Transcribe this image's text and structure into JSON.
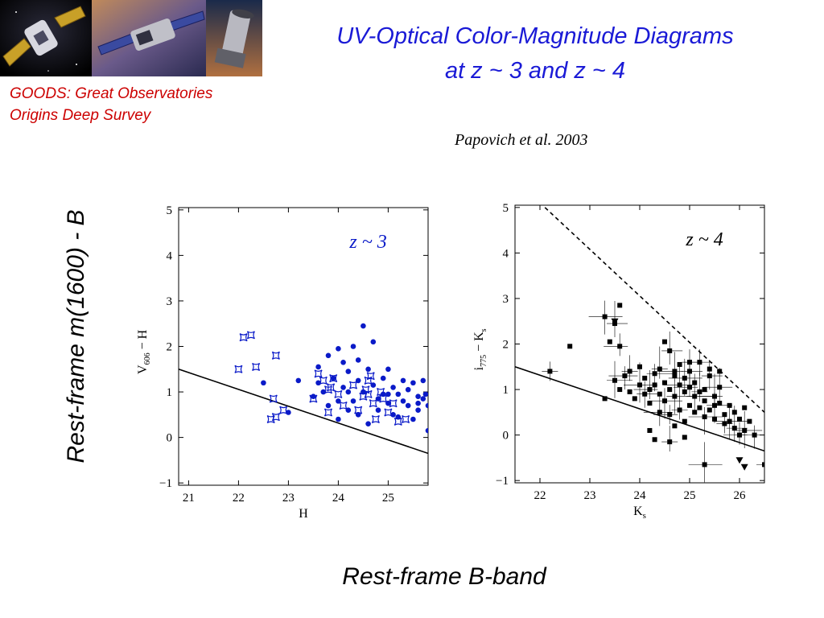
{
  "slide": {
    "title_line1": "UV-Optical Color-Magnitude Diagrams",
    "title_line2": "at z ~ 3 and z ~ 4",
    "goods_line1": "GOODS: Great Observatories",
    "goods_line2": "Origins Deep Survey",
    "citation": "Papovich et al. 2003",
    "ylabel": "Rest-frame m(1600) - B",
    "xlabel": "Rest-frame B-band",
    "colors": {
      "title": "#1a1ad6",
      "caption": "#cc0000",
      "z3_points": "#0a1ac8",
      "z4_points": "#000000"
    },
    "banner_icons": [
      "chandra-satellite-icon",
      "xmm-satellite-icon",
      "spitzer-telescope-icon"
    ]
  },
  "chart_data": [
    {
      "type": "scatter",
      "xlabel": "H",
      "ylabel_base": "V",
      "ylabel_sub": "606",
      "ylabel_tail": " − H",
      "annotation": "z ~ 3",
      "xlim": [
        20.8,
        25.8
      ],
      "ylim": [
        -1.05,
        5.05
      ],
      "xticks": [
        21,
        22,
        23,
        24,
        25
      ],
      "yticks": [
        -1,
        0,
        1,
        2,
        3,
        4,
        5
      ],
      "line": [
        [
          20.8,
          1.5
        ],
        [
          25.8,
          -0.35
        ]
      ],
      "series": [
        {
          "marker": "circle",
          "points": [
            [
              22.5,
              1.2
            ],
            [
              23.0,
              0.55
            ],
            [
              23.2,
              1.25
            ],
            [
              23.5,
              0.9
            ],
            [
              23.6,
              1.55
            ],
            [
              23.7,
              1.0
            ],
            [
              23.8,
              1.8
            ],
            [
              23.8,
              0.7
            ],
            [
              23.9,
              1.3
            ],
            [
              24.0,
              1.95
            ],
            [
              24.0,
              0.8
            ],
            [
              24.1,
              1.1
            ],
            [
              24.1,
              1.65
            ],
            [
              24.2,
              0.6
            ],
            [
              24.2,
              1.45
            ],
            [
              24.3,
              2.0
            ],
            [
              24.3,
              0.8
            ],
            [
              24.4,
              1.25
            ],
            [
              24.4,
              0.5
            ],
            [
              24.4,
              1.7
            ],
            [
              24.5,
              2.45
            ],
            [
              24.5,
              1.0
            ],
            [
              24.6,
              1.5
            ],
            [
              24.6,
              0.3
            ],
            [
              24.7,
              1.15
            ],
            [
              24.7,
              2.1
            ],
            [
              24.8,
              0.6
            ],
            [
              24.8,
              0.85
            ],
            [
              24.9,
              1.3
            ],
            [
              25.0,
              0.75
            ],
            [
              25.0,
              0.95
            ],
            [
              25.0,
              1.5
            ],
            [
              25.1,
              1.1
            ],
            [
              25.1,
              0.5
            ],
            [
              25.2,
              0.95
            ],
            [
              25.3,
              0.8
            ],
            [
              25.3,
              1.25
            ],
            [
              25.4,
              0.7
            ],
            [
              25.4,
              1.05
            ],
            [
              25.5,
              0.4
            ],
            [
              25.5,
              1.2
            ],
            [
              25.6,
              0.6
            ],
            [
              25.6,
              0.9
            ],
            [
              25.7,
              1.25
            ],
            [
              25.7,
              0.85
            ],
            [
              25.8,
              0.7
            ],
            [
              25.8,
              0.15
            ],
            [
              25.75,
              0.95
            ],
            [
              25.6,
              0.75
            ],
            [
              24.2,
              1.0
            ],
            [
              23.6,
              1.2
            ],
            [
              24.9,
              0.95
            ],
            [
              25.2,
              0.45
            ],
            [
              24.0,
              0.4
            ]
          ]
        },
        {
          "marker": "star",
          "points": [
            [
              22.1,
              2.2
            ],
            [
              22.25,
              2.25
            ],
            [
              22.0,
              1.5
            ],
            [
              22.35,
              1.55
            ],
            [
              22.75,
              1.8
            ],
            [
              22.7,
              0.85
            ],
            [
              22.75,
              0.45
            ],
            [
              22.65,
              0.4
            ],
            [
              22.9,
              0.6
            ],
            [
              23.5,
              0.85
            ],
            [
              23.6,
              1.4
            ],
            [
              23.7,
              1.25
            ],
            [
              23.8,
              1.05
            ],
            [
              23.8,
              0.55
            ],
            [
              23.85,
              1.1
            ],
            [
              23.9,
              1.3
            ],
            [
              24.0,
              0.95
            ],
            [
              24.1,
              0.7
            ],
            [
              24.3,
              1.15
            ],
            [
              24.4,
              0.6
            ],
            [
              24.5,
              0.9
            ],
            [
              24.55,
              1.05
            ],
            [
              24.6,
              1.25
            ],
            [
              24.6,
              0.95
            ],
            [
              24.65,
              1.35
            ],
            [
              24.7,
              0.75
            ],
            [
              24.75,
              0.4
            ],
            [
              24.85,
              1.0
            ],
            [
              24.9,
              0.85
            ],
            [
              25.0,
              0.55
            ],
            [
              25.1,
              0.75
            ],
            [
              25.2,
              0.35
            ],
            [
              25.35,
              0.4
            ]
          ]
        }
      ]
    },
    {
      "type": "scatter",
      "xlabel_base": "K",
      "xlabel_sub": "s",
      "ylabel_base": "i",
      "ylabel_sub": "775",
      "ylabel_tail": " − K",
      "ylabel_tail_sub": "s",
      "annotation": "z ~ 4",
      "xlim": [
        21.5,
        26.5
      ],
      "ylim": [
        -1.05,
        5.05
      ],
      "xticks": [
        22,
        23,
        24,
        25,
        26
      ],
      "yticks": [
        -1,
        0,
        1,
        2,
        3,
        4,
        5
      ],
      "line": [
        [
          21.5,
          1.5
        ],
        [
          26.5,
          -0.35
        ]
      ],
      "dashed_line": [
        [
          22.1,
          5.0
        ],
        [
          26.5,
          0.5
        ]
      ],
      "series": [
        {
          "marker": "square",
          "points": [
            [
              22.2,
              1.4
            ],
            [
              22.6,
              1.95
            ],
            [
              23.3,
              2.6
            ],
            [
              23.6,
              2.85
            ],
            [
              23.5,
              2.45
            ],
            [
              23.4,
              2.05
            ],
            [
              23.6,
              1.95
            ],
            [
              23.3,
              0.8
            ],
            [
              23.5,
              1.2
            ],
            [
              23.6,
              1.0
            ],
            [
              23.7,
              1.3
            ],
            [
              23.8,
              0.95
            ],
            [
              23.8,
              1.4
            ],
            [
              23.9,
              0.8
            ],
            [
              24.0,
              1.1
            ],
            [
              24.0,
              1.5
            ],
            [
              24.1,
              0.9
            ],
            [
              24.1,
              1.25
            ],
            [
              24.2,
              1.0
            ],
            [
              24.2,
              0.7
            ],
            [
              24.3,
              1.35
            ],
            [
              24.3,
              1.1
            ],
            [
              24.4,
              0.5
            ],
            [
              24.4,
              0.9
            ],
            [
              24.4,
              1.45
            ],
            [
              24.5,
              1.15
            ],
            [
              24.5,
              0.75
            ],
            [
              24.5,
              2.05
            ],
            [
              24.6,
              1.85
            ],
            [
              24.6,
              1.0
            ],
            [
              24.6,
              0.45
            ],
            [
              24.7,
              1.3
            ],
            [
              24.7,
              0.85
            ],
            [
              24.7,
              0.2
            ],
            [
              24.8,
              1.1
            ],
            [
              24.8,
              1.55
            ],
            [
              24.8,
              0.55
            ],
            [
              24.9,
              0.95
            ],
            [
              24.9,
              1.25
            ],
            [
              24.9,
              0.3
            ],
            [
              25.0,
              1.4
            ],
            [
              25.0,
              0.65
            ],
            [
              25.0,
              1.05
            ],
            [
              25.1,
              0.5
            ],
            [
              25.1,
              0.85
            ],
            [
              25.1,
              1.15
            ],
            [
              25.2,
              1.6
            ],
            [
              25.2,
              0.6
            ],
            [
              25.2,
              0.95
            ],
            [
              25.3,
              1.0
            ],
            [
              25.3,
              0.4
            ],
            [
              25.3,
              0.75
            ],
            [
              25.4,
              1.3
            ],
            [
              25.4,
              0.55
            ],
            [
              25.5,
              0.85
            ],
            [
              25.5,
              0.35
            ],
            [
              25.5,
              0.65
            ],
            [
              25.6,
              0.7
            ],
            [
              25.6,
              1.05
            ],
            [
              25.7,
              0.45
            ],
            [
              25.7,
              0.25
            ],
            [
              25.8,
              0.65
            ],
            [
              25.8,
              0.3
            ],
            [
              25.9,
              0.5
            ],
            [
              25.9,
              0.15
            ],
            [
              26.0,
              0.35
            ],
            [
              26.0,
              0.0
            ],
            [
              26.1,
              0.6
            ],
            [
              26.1,
              0.1
            ],
            [
              26.2,
              0.3
            ],
            [
              26.3,
              0.0
            ],
            [
              24.3,
              -0.1
            ],
            [
              24.6,
              -0.15
            ],
            [
              24.9,
              -0.05
            ],
            [
              25.3,
              -0.65
            ],
            [
              25.4,
              1.45
            ],
            [
              25.0,
              1.6
            ],
            [
              24.2,
              0.1
            ],
            [
              24.7,
              1.4
            ],
            [
              25.6,
              1.4
            ],
            [
              26.5,
              -0.65
            ]
          ]
        },
        {
          "marker": "triangle-down",
          "points": [
            [
              23.5,
              2.5
            ],
            [
              26.0,
              -0.55
            ],
            [
              26.1,
              -0.7
            ]
          ]
        }
      ]
    }
  ]
}
